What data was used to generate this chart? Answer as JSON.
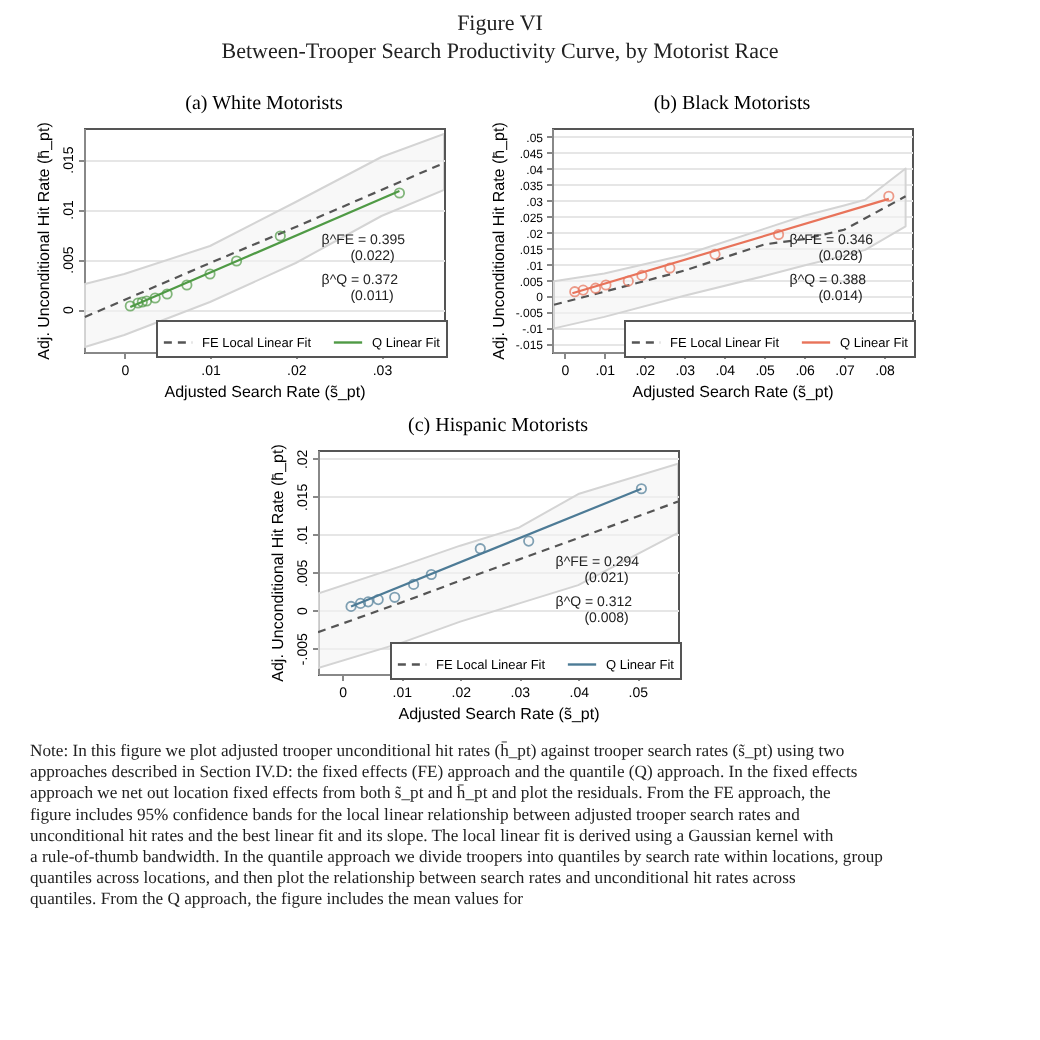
{
  "chart_data": [
    {
      "type": "other",
      "title": "Figure VI",
      "subtitle": "Between-Trooper Search Productivity Curve, by Motorist Race"
    },
    {
      "type": "line",
      "title": "(a) White Motorists",
      "xlabel": "Adjusted Search Rate (s̃_pt)",
      "ylabel": "Adj. Unconditional Hit Rate (h̄_pt)",
      "xlim": [
        -0.0047,
        0.0373
      ],
      "ylim": [
        -0.0043,
        0.0181
      ],
      "xticks": [
        {
          "value": 0,
          "label": "0"
        },
        {
          "value": 0.01,
          "label": ".01"
        },
        {
          "value": 0.02,
          "label": ".02"
        },
        {
          "value": 0.03,
          "label": ".03"
        }
      ],
      "yticks": [
        {
          "value": 0,
          "label": "0"
        },
        {
          "value": 0.005,
          "label": ".005"
        },
        {
          "value": 0.01,
          "label": ".01"
        },
        {
          "value": 0.015,
          "label": ".015"
        }
      ],
      "grid": "y",
      "legend": "bottom",
      "annotations": [
        "β^FE = 0.395",
        "(0.022)",
        "β^Q = 0.372",
        "(0.011)"
      ],
      "series": [
        {
          "name": "FE Local Linear Fit",
          "color": "#555555",
          "line_style": "dashed",
          "x": [
            -0.0046,
            0,
            0.01,
            0.02,
            0.03,
            0.0373
          ],
          "values": [
            -0.0008,
            0.0009,
            0.0046,
            0.0082,
            0.0119,
            0.0146
          ],
          "upper": [
            0.0025,
            0.0035,
            0.0063,
            0.0107,
            0.0152,
            0.0175
          ],
          "lower": [
            -0.0038,
            -0.0026,
            0.0007,
            0.0046,
            0.0093,
            0.0119
          ]
        },
        {
          "name": "Q Linear Fit",
          "color": "#4f9a45",
          "line_style": "solid",
          "x": [
            0.0007,
            0.0321
          ],
          "values": [
            0.0002,
            0.0118
          ]
        },
        {
          "type": "scatter",
          "marker": "circle",
          "color": "#4f9a45",
          "x": [
            0.0007,
            0.0016,
            0.0021,
            0.0026,
            0.0036,
            0.005,
            0.0073,
            0.01,
            0.0131,
            0.0182,
            0.0321
          ],
          "values": [
            0.0003,
            0.0006,
            0.0007,
            0.0008,
            0.0011,
            0.0015,
            0.0024,
            0.0035,
            0.0048,
            0.0073,
            0.0116
          ]
        }
      ]
    },
    {
      "type": "line",
      "title": "(b) Black Motorists",
      "xlabel": "Adjusted Search Rate (s̃_pt)",
      "ylabel": "Adj. Unconditional Hit Rate (h̄_pt)",
      "xlim": [
        -0.0031,
        0.087
      ],
      "ylim": [
        -0.0174,
        0.0528
      ],
      "xticks": [
        {
          "value": 0,
          "label": "0"
        },
        {
          "value": 0.01,
          "label": ".01"
        },
        {
          "value": 0.02,
          "label": ".02"
        },
        {
          "value": 0.03,
          "label": ".03"
        },
        {
          "value": 0.04,
          "label": ".04"
        },
        {
          "value": 0.05,
          "label": ".05"
        },
        {
          "value": 0.06,
          "label": ".06"
        },
        {
          "value": 0.07,
          "label": ".07"
        },
        {
          "value": 0.08,
          "label": ".08"
        }
      ],
      "yticks": [
        {
          "value": -0.015,
          "label": "-.015"
        },
        {
          "value": -0.01,
          "label": "-.01"
        },
        {
          "value": -0.005,
          "label": "-.005"
        },
        {
          "value": 0,
          "label": "0"
        },
        {
          "value": 0.005,
          "label": ".005"
        },
        {
          "value": 0.01,
          "label": ".01"
        },
        {
          "value": 0.015,
          "label": ".015"
        },
        {
          "value": 0.02,
          "label": ".02"
        },
        {
          "value": 0.025,
          "label": ".025"
        },
        {
          "value": 0.03,
          "label": ".03"
        },
        {
          "value": 0.035,
          "label": ".035"
        },
        {
          "value": 0.04,
          "label": ".04"
        },
        {
          "value": 0.045,
          "label": ".045"
        },
        {
          "value": 0.05,
          "label": ".05"
        }
      ],
      "grid": "y",
      "legend": "bottom",
      "annotations": [
        "β^FE = 0.346",
        "(0.028)",
        "β^Q = 0.388",
        "(0.014)"
      ],
      "series": [
        {
          "name": "FE Local Linear Fit",
          "color": "#555555",
          "line_style": "dashed",
          "x": [
            -0.0026,
            0.01,
            0.03,
            0.05,
            0.06,
            0.07,
            0.0753,
            0.0854
          ],
          "values": [
            -0.0026,
            0.0015,
            0.0081,
            0.0163,
            0.018,
            0.0209,
            0.0245,
            0.0314
          ],
          "upper": [
            0.0048,
            0.0072,
            0.013,
            0.0212,
            0.0253,
            0.0285,
            0.0303,
            0.0401
          ],
          "lower": [
            -0.01,
            -0.0064,
            0.0002,
            0.0064,
            0.0097,
            0.0128,
            0.0146,
            0.022
          ]
        },
        {
          "name": "Q Linear Fit",
          "color": "#e8735a",
          "line_style": "solid",
          "x": [
            0.002,
            0.0812
          ],
          "values": [
            0.001,
            0.0306
          ]
        },
        {
          "type": "scatter",
          "marker": "circle",
          "color": "#e8735a",
          "x": [
            0.0026,
            0.0047,
            0.0078,
            0.0104,
            0.016,
            0.0194,
            0.0264,
            0.0377,
            0.0536,
            0.0812
          ],
          "values": [
            0.0015,
            0.002,
            0.0026,
            0.0036,
            0.0048,
            0.0066,
            0.0089,
            0.0132,
            0.0194,
            0.0314
          ]
        }
      ]
    },
    {
      "type": "line",
      "title": "(c) Hispanic Motorists",
      "xlabel": "Adjusted Search Rate (s̃_pt)",
      "ylabel": "Adj. Unconditional Hit Rate (h̄_pt)",
      "xlim": [
        -0.0041,
        0.0569
      ],
      "ylim": [
        -0.0084,
        0.0211
      ],
      "xticks": [
        {
          "value": 0,
          "label": "0"
        },
        {
          "value": 0.01,
          "label": ".01"
        },
        {
          "value": 0.02,
          "label": ".02"
        },
        {
          "value": 0.03,
          "label": ".03"
        },
        {
          "value": 0.04,
          "label": ".04"
        },
        {
          "value": 0.05,
          "label": ".05"
        }
      ],
      "yticks": [
        {
          "value": -0.005,
          "label": "-.005"
        },
        {
          "value": 0,
          "label": "0"
        },
        {
          "value": 0.005,
          "label": ".005"
        },
        {
          "value": 0.01,
          "label": ".01"
        },
        {
          "value": 0.015,
          "label": ".015"
        },
        {
          "value": 0.02,
          "label": ".02"
        }
      ],
      "grid": "y",
      "legend": "bottom",
      "annotations": [
        "β^FE = 0.294",
        "(0.021)",
        "β^Q = 0.312",
        "(0.008)"
      ],
      "series": [
        {
          "name": "FE Local Linear Fit",
          "color": "#555555",
          "line_style": "dashed",
          "x": [
            -0.0041,
            0.01,
            0.02,
            0.03,
            0.04,
            0.0569
          ],
          "values": [
            -0.0029,
            0.001,
            0.0039,
            0.0067,
            0.0095,
            0.0143
          ],
          "upper": [
            0.0022,
            0.0058,
            0.0085,
            0.0109,
            0.0153,
            0.0193
          ],
          "lower": [
            -0.0076,
            -0.0043,
            -0.0015,
            0.0009,
            0.0033,
            0.0102
          ]
        },
        {
          "name": "Q Linear Fit",
          "color": "#4d7b96",
          "line_style": "solid",
          "x": [
            0.0015,
            0.0507
          ],
          "values": [
            0.0005,
            0.016
          ]
        },
        {
          "type": "scatter",
          "marker": "circle",
          "color": "#4d7b96",
          "x": [
            0.0015,
            0.0031,
            0.0044,
            0.0061,
            0.0089,
            0.0121,
            0.0151,
            0.0234,
            0.0316,
            0.0507
          ],
          "values": [
            0.0005,
            0.0009,
            0.0011,
            0.0014,
            0.0017,
            0.0034,
            0.0047,
            0.0081,
            0.0091,
            0.016
          ]
        }
      ]
    },
    {
      "type": "other",
      "annotations": [
        "Note: In this figure we plot adjusted trooper unconditional hit rates (h̄_pt) against trooper search rates (s̃_pt) using two approaches described in Section IV.D: the fixed effects (FE) approach and the quantile (Q) approach. In the fixed effects approach we net out location fixed effects from both s̃_pt and h̄_pt and plot the residuals. From the FE approach, the figure includes 95% confidence bands for the local linear relationship between adjusted trooper search rates and unconditional hit rates and the best linear fit and its slope. The local linear fit is derived using a Gaussian kernel with a rule-of-thumb bandwidth. In the quantile approach we divide troopers into quantiles by search rate within locations, group quantiles across locations, and then plot the relationship between search rates and unconditional hit rates across quantiles. From the Q approach, the figure includes the mean values for"
      ]
    }
  ]
}
